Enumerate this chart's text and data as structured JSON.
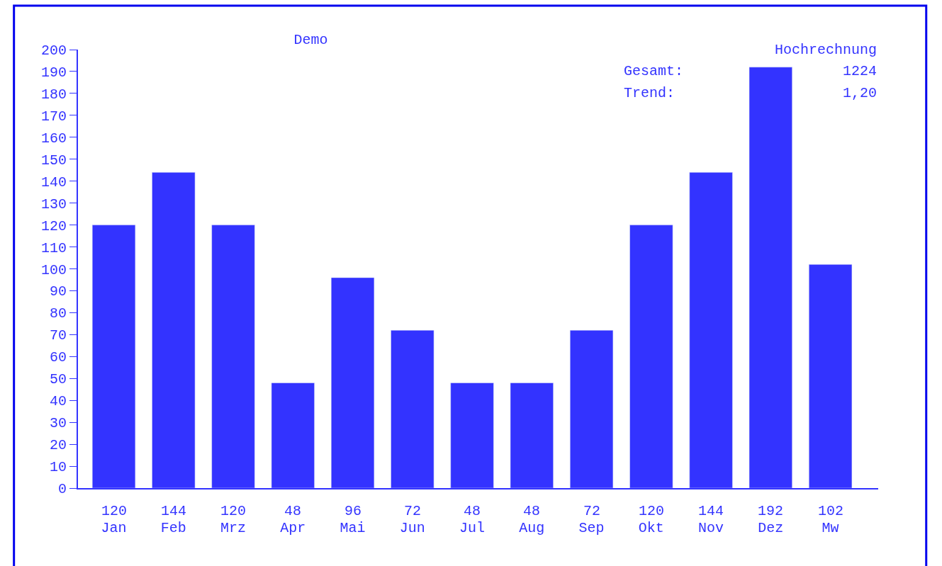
{
  "chart_data": {
    "type": "bar",
    "title": "Demo",
    "categories": [
      "Jan",
      "Feb",
      "Mrz",
      "Apr",
      "Mai",
      "Jun",
      "Jul",
      "Aug",
      "Sep",
      "Okt",
      "Nov",
      "Dez",
      "Mw"
    ],
    "values": [
      120,
      144,
      120,
      48,
      96,
      72,
      48,
      48,
      72,
      120,
      144,
      192,
      102
    ],
    "color": "#3333ff",
    "ylim": [
      0,
      200
    ],
    "yticks": [
      0,
      10,
      20,
      30,
      40,
      50,
      60,
      70,
      80,
      90,
      100,
      110,
      120,
      130,
      140,
      150,
      160,
      170,
      180,
      190,
      200
    ],
    "data_labels": true,
    "annotations": [
      "Hochrechnung",
      "Gesamt:",
      "1224",
      "Trend:",
      "1,20"
    ],
    "grid": false
  }
}
